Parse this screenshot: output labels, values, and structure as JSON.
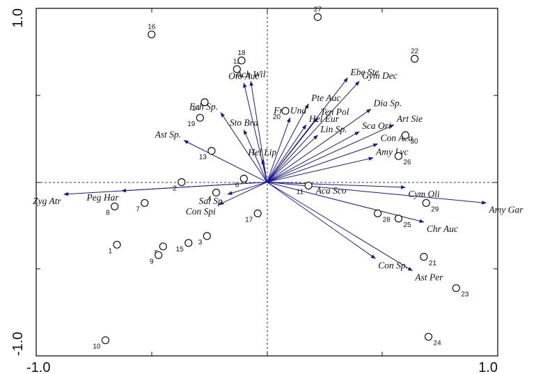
{
  "chart_data": {
    "type": "scatter",
    "title": "",
    "xlabel": "",
    "ylabel": "",
    "xlim": [
      -1.0,
      1.0
    ],
    "ylim": [
      -1.0,
      1.0
    ],
    "x_tick_labels": [
      {
        "value": -1.0,
        "label": "-1.0"
      },
      {
        "value": 1.0,
        "label": "1.0"
      }
    ],
    "y_tick_labels": [
      {
        "value": 1.0,
        "label": "1.0"
      },
      {
        "value": -1.0,
        "label": "-1.0"
      }
    ],
    "grid": false,
    "zero_lines": true,
    "colors": {
      "arrow": "#1a1a8c",
      "site": "#111111",
      "axis": "#111111"
    },
    "species": [
      {
        "label": "Ach Wil",
        "x": -0.07,
        "y": 0.58
      },
      {
        "label": "Oto Auc",
        "x": -0.1,
        "y": 0.57
      },
      {
        "label": "Ebe Ste",
        "x": 0.35,
        "y": 0.6
      },
      {
        "label": "Gym Dec",
        "x": 0.4,
        "y": 0.58
      },
      {
        "label": "Pte Auc",
        "x": 0.18,
        "y": 0.45
      },
      {
        "label": "Dia Sp.",
        "x": 0.45,
        "y": 0.42
      },
      {
        "label": "Ech Sp.",
        "x": -0.2,
        "y": 0.4
      },
      {
        "label": "Fra Und",
        "x": 0.1,
        "y": 0.37
      },
      {
        "label": "Ten Pol",
        "x": 0.22,
        "y": 0.37
      },
      {
        "label": "Art Sie",
        "x": 0.55,
        "y": 0.33
      },
      {
        "label": "Hel Eur",
        "x": 0.17,
        "y": 0.33
      },
      {
        "label": "Sca Ori",
        "x": 0.4,
        "y": 0.29
      },
      {
        "label": "Sto Bra",
        "x": -0.1,
        "y": 0.3
      },
      {
        "label": "Lin Sp.",
        "x": 0.22,
        "y": 0.27
      },
      {
        "label": "Ast Sp.",
        "x": -0.36,
        "y": 0.24
      },
      {
        "label": "Con Aca",
        "x": 0.48,
        "y": 0.22
      },
      {
        "label": "Hel Lip",
        "x": -0.02,
        "y": 0.13
      },
      {
        "label": "Amy Lyc",
        "x": 0.46,
        "y": 0.14
      },
      {
        "label": "Aca Sco",
        "x": 0.2,
        "y": -0.01
      },
      {
        "label": "Cym Oli",
        "x": 0.6,
        "y": -0.03
      },
      {
        "label": "Peg Har",
        "x": -0.63,
        "y": -0.05
      },
      {
        "label": "Zyg Atr",
        "x": -0.88,
        "y": -0.07
      },
      {
        "label": "Sal Sp.",
        "x": -0.17,
        "y": -0.07
      },
      {
        "label": "Con Spi",
        "x": -0.21,
        "y": -0.13
      },
      {
        "label": "Amy Gar",
        "x": 0.95,
        "y": -0.12
      },
      {
        "label": "Chr Auc",
        "x": 0.68,
        "y": -0.23
      },
      {
        "label": "Con Sp.",
        "x": 0.47,
        "y": -0.44
      },
      {
        "label": "Ast Per",
        "x": 0.63,
        "y": -0.51
      }
    ],
    "sites": [
      {
        "label": "1",
        "x": -0.65,
        "y": -0.36
      },
      {
        "label": "2",
        "x": -0.37,
        "y": 0.0
      },
      {
        "label": "3",
        "x": -0.26,
        "y": -0.31
      },
      {
        "label": "4",
        "x": -0.22,
        "y": -0.06
      },
      {
        "label": "5",
        "x": -0.45,
        "y": -0.37
      },
      {
        "label": "6",
        "x": -0.1,
        "y": 0.02
      },
      {
        "label": "7",
        "x": -0.53,
        "y": -0.12
      },
      {
        "label": "8",
        "x": -0.66,
        "y": -0.14
      },
      {
        "label": "9",
        "x": -0.47,
        "y": -0.42
      },
      {
        "label": "10",
        "x": -0.7,
        "y": -0.91
      },
      {
        "label": "11",
        "x": 0.18,
        "y": -0.02
      },
      {
        "label": "12",
        "x": -0.13,
        "y": 0.65
      },
      {
        "label": "13",
        "x": -0.24,
        "y": 0.18
      },
      {
        "label": "14",
        "x": -0.27,
        "y": 0.46
      },
      {
        "label": "15",
        "x": -0.34,
        "y": -0.35
      },
      {
        "label": "16",
        "x": -0.5,
        "y": 0.85
      },
      {
        "label": "17",
        "x": -0.04,
        "y": -0.18
      },
      {
        "label": "18",
        "x": -0.11,
        "y": 0.7
      },
      {
        "label": "19",
        "x": -0.29,
        "y": 0.37
      },
      {
        "label": "20",
        "x": 0.08,
        "y": 0.41
      },
      {
        "label": "21",
        "x": 0.68,
        "y": -0.43
      },
      {
        "label": "22",
        "x": 0.64,
        "y": 0.71
      },
      {
        "label": "23",
        "x": 0.82,
        "y": -0.61
      },
      {
        "label": "24",
        "x": 0.7,
        "y": -0.89
      },
      {
        "label": "25",
        "x": 0.57,
        "y": -0.21
      },
      {
        "label": "26",
        "x": 0.57,
        "y": 0.15
      },
      {
        "label": "27",
        "x": 0.22,
        "y": 0.95
      },
      {
        "label": "28",
        "x": 0.48,
        "y": -0.18
      },
      {
        "label": "29",
        "x": 0.69,
        "y": -0.12
      },
      {
        "label": "30",
        "x": 0.6,
        "y": 0.27
      }
    ]
  }
}
